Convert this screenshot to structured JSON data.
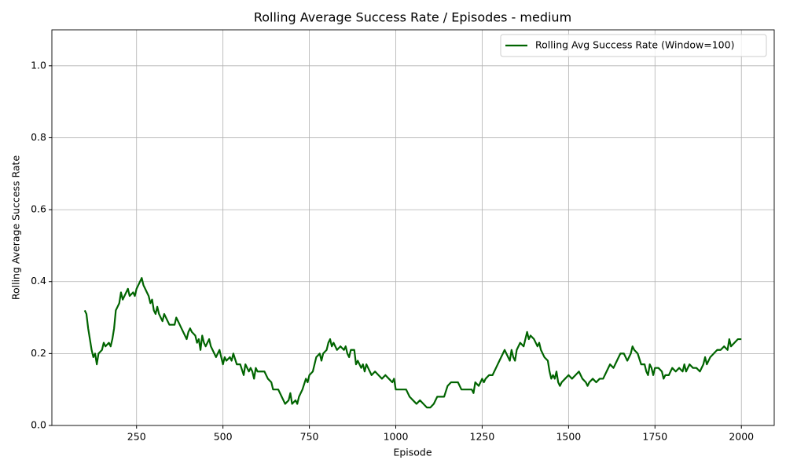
{
  "chart_data": {
    "type": "line",
    "title": "Rolling Average Success Rate / Episodes - medium",
    "x_label": "Episode",
    "y_label": "Rolling Average Success Rate",
    "x": [
      100,
      105,
      110,
      115,
      120,
      125,
      130,
      135,
      140,
      150,
      155,
      160,
      170,
      175,
      180,
      185,
      190,
      195,
      200,
      205,
      210,
      220,
      225,
      230,
      240,
      245,
      250,
      255,
      260,
      265,
      270,
      275,
      280,
      285,
      290,
      295,
      300,
      305,
      310,
      315,
      320,
      325,
      330,
      340,
      345,
      350,
      360,
      365,
      370,
      375,
      380,
      385,
      390,
      395,
      400,
      405,
      410,
      420,
      425,
      430,
      435,
      440,
      445,
      450,
      460,
      465,
      470,
      480,
      490,
      495,
      500,
      505,
      510,
      520,
      525,
      530,
      540,
      550,
      560,
      565,
      570,
      575,
      580,
      585,
      590,
      595,
      600,
      620,
      630,
      640,
      645,
      660,
      670,
      680,
      690,
      695,
      700,
      710,
      715,
      720,
      730,
      740,
      745,
      750,
      760,
      770,
      780,
      785,
      790,
      800,
      805,
      810,
      815,
      820,
      830,
      840,
      850,
      855,
      860,
      865,
      870,
      880,
      885,
      890,
      900,
      905,
      910,
      915,
      920,
      930,
      940,
      950,
      960,
      970,
      980,
      990,
      995,
      1000,
      1030,
      1040,
      1050,
      1060,
      1070,
      1080,
      1090,
      1100,
      1110,
      1120,
      1140,
      1150,
      1160,
      1180,
      1190,
      1220,
      1225,
      1230,
      1240,
      1250,
      1255,
      1260,
      1270,
      1280,
      1290,
      1300,
      1310,
      1315,
      1320,
      1330,
      1335,
      1340,
      1345,
      1350,
      1360,
      1370,
      1375,
      1380,
      1385,
      1390,
      1400,
      1410,
      1415,
      1420,
      1430,
      1440,
      1445,
      1450,
      1455,
      1460,
      1465,
      1470,
      1475,
      1480,
      1490,
      1500,
      1510,
      1520,
      1530,
      1535,
      1540,
      1550,
      1555,
      1560,
      1570,
      1580,
      1590,
      1600,
      1610,
      1620,
      1630,
      1640,
      1650,
      1660,
      1670,
      1680,
      1685,
      1690,
      1700,
      1710,
      1720,
      1725,
      1730,
      1735,
      1740,
      1745,
      1750,
      1760,
      1770,
      1775,
      1780,
      1790,
      1800,
      1810,
      1820,
      1830,
      1835,
      1840,
      1850,
      1860,
      1870,
      1880,
      1890,
      1895,
      1900,
      1910,
      1920,
      1930,
      1940,
      1950,
      1960,
      1965,
      1970,
      1980,
      1990,
      2000
    ],
    "series": [
      {
        "name": "Rolling Avg Success Rate (Window=100)",
        "color": "#006400",
        "values": [
          0.32,
          0.31,
          0.27,
          0.24,
          0.21,
          0.19,
          0.2,
          0.17,
          0.2,
          0.21,
          0.23,
          0.22,
          0.23,
          0.22,
          0.24,
          0.27,
          0.32,
          0.33,
          0.34,
          0.37,
          0.35,
          0.37,
          0.38,
          0.36,
          0.37,
          0.36,
          0.38,
          0.39,
          0.4,
          0.41,
          0.39,
          0.38,
          0.37,
          0.36,
          0.34,
          0.35,
          0.32,
          0.31,
          0.33,
          0.31,
          0.3,
          0.29,
          0.31,
          0.29,
          0.28,
          0.28,
          0.28,
          0.3,
          0.29,
          0.28,
          0.27,
          0.26,
          0.25,
          0.24,
          0.26,
          0.27,
          0.26,
          0.25,
          0.23,
          0.24,
          0.21,
          0.25,
          0.23,
          0.22,
          0.24,
          0.22,
          0.21,
          0.19,
          0.21,
          0.19,
          0.17,
          0.19,
          0.18,
          0.19,
          0.18,
          0.2,
          0.17,
          0.17,
          0.14,
          0.17,
          0.16,
          0.15,
          0.16,
          0.15,
          0.13,
          0.16,
          0.15,
          0.15,
          0.13,
          0.12,
          0.1,
          0.1,
          0.08,
          0.06,
          0.07,
          0.09,
          0.06,
          0.07,
          0.06,
          0.08,
          0.1,
          0.13,
          0.12,
          0.14,
          0.15,
          0.19,
          0.2,
          0.18,
          0.2,
          0.21,
          0.23,
          0.24,
          0.22,
          0.23,
          0.21,
          0.22,
          0.21,
          0.22,
          0.2,
          0.19,
          0.21,
          0.21,
          0.17,
          0.18,
          0.16,
          0.17,
          0.15,
          0.17,
          0.16,
          0.14,
          0.15,
          0.14,
          0.13,
          0.14,
          0.13,
          0.12,
          0.13,
          0.1,
          0.1,
          0.08,
          0.07,
          0.06,
          0.07,
          0.06,
          0.05,
          0.05,
          0.06,
          0.08,
          0.08,
          0.11,
          0.12,
          0.12,
          0.1,
          0.1,
          0.09,
          0.12,
          0.11,
          0.13,
          0.12,
          0.13,
          0.14,
          0.14,
          0.16,
          0.18,
          0.2,
          0.21,
          0.2,
          0.18,
          0.21,
          0.19,
          0.18,
          0.21,
          0.23,
          0.22,
          0.24,
          0.26,
          0.24,
          0.25,
          0.24,
          0.22,
          0.23,
          0.21,
          0.19,
          0.18,
          0.15,
          0.13,
          0.14,
          0.13,
          0.15,
          0.12,
          0.11,
          0.12,
          0.13,
          0.14,
          0.13,
          0.14,
          0.15,
          0.14,
          0.13,
          0.12,
          0.11,
          0.12,
          0.13,
          0.12,
          0.13,
          0.13,
          0.15,
          0.17,
          0.16,
          0.18,
          0.2,
          0.2,
          0.18,
          0.2,
          0.22,
          0.21,
          0.2,
          0.17,
          0.17,
          0.15,
          0.14,
          0.17,
          0.16,
          0.14,
          0.16,
          0.16,
          0.15,
          0.13,
          0.14,
          0.14,
          0.16,
          0.15,
          0.16,
          0.15,
          0.17,
          0.15,
          0.17,
          0.16,
          0.16,
          0.15,
          0.17,
          0.19,
          0.17,
          0.19,
          0.2,
          0.21,
          0.21,
          0.22,
          0.21,
          0.24,
          0.22,
          0.23,
          0.24,
          0.24
        ]
      }
    ],
    "xlim": [
      5,
      2095
    ],
    "ylim": [
      0,
      1.1
    ],
    "xticks": [
      250,
      500,
      750,
      1000,
      1250,
      1500,
      1750,
      2000
    ],
    "yticks": [
      {
        "value": 0,
        "label": "0.0"
      },
      0.2,
      0.4,
      0.6,
      0.8,
      {
        "value": 1,
        "label": "1.0"
      }
    ],
    "grid": true,
    "legend": "upper right"
  }
}
